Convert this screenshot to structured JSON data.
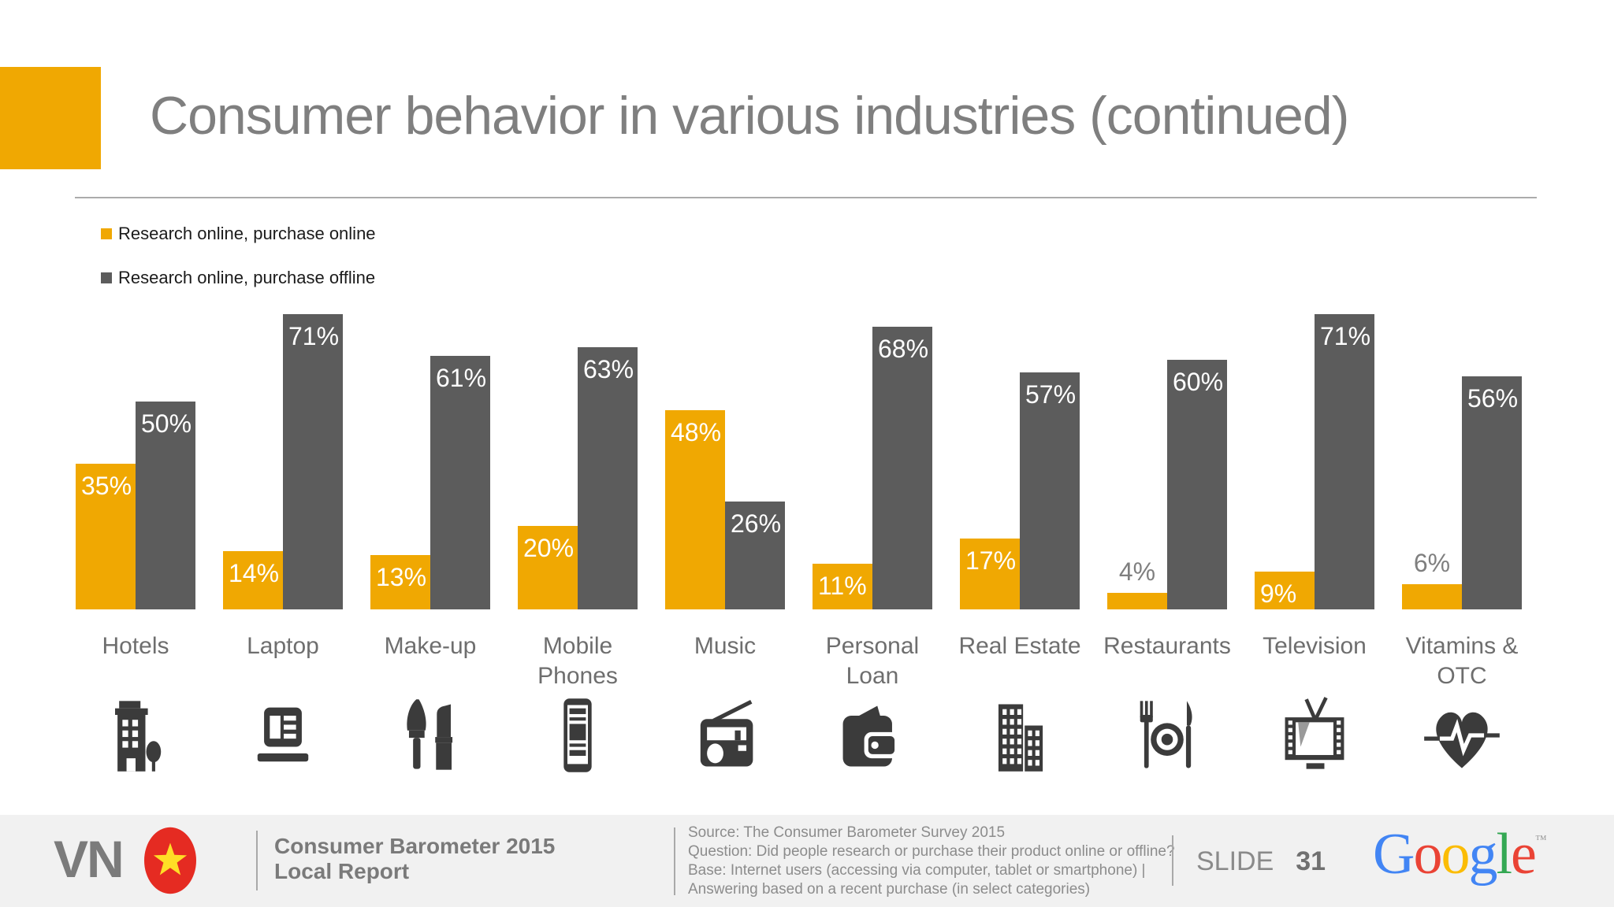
{
  "slide": {
    "title": "Consumer behavior in various industries (continued)",
    "slide_label": "SLIDE",
    "slide_number": "31",
    "brand": {
      "country": "VN",
      "report_line1": "Consumer Barometer 2015",
      "report_line2": "Local Report",
      "google_letters": [
        {
          "ch": "G",
          "color": "#4285F4"
        },
        {
          "ch": "o",
          "color": "#EA4335"
        },
        {
          "ch": "o",
          "color": "#FBBC05"
        },
        {
          "ch": "g",
          "color": "#4285F4"
        },
        {
          "ch": "l",
          "color": "#34A853"
        },
        {
          "ch": "e",
          "color": "#EA4335"
        }
      ],
      "google_tm": "™"
    },
    "source_lines": [
      "Source: The Consumer Barometer Survey 2015",
      "Question:  Did people research or purchase their product online or offline?",
      "Base: Internet users (accessing via computer, tablet or smartphone) |",
      "Answering based on a recent purchase (in select categories)"
    ]
  },
  "legend": [
    {
      "label": "Research online, purchase online",
      "color": "#F0A802"
    },
    {
      "label": "Research online, purchase offline",
      "color": "#5C5C5C"
    }
  ],
  "chart_data": {
    "type": "bar",
    "categories": [
      "Hotels",
      "Laptop",
      "Make-up",
      "Mobile Phones",
      "Music",
      "Personal Loan",
      "Real Estate",
      "Restaurants",
      "Television",
      "Vitamins & OTC"
    ],
    "series": [
      {
        "name": "Research online, purchase online",
        "color": "#F0A802",
        "values": [
          35,
          14,
          13,
          20,
          48,
          11,
          17,
          4,
          9,
          6
        ]
      },
      {
        "name": "Research online, purchase offline",
        "color": "#5C5C5C",
        "values": [
          50,
          71,
          61,
          63,
          26,
          68,
          57,
          60,
          71,
          56
        ]
      }
    ],
    "value_suffix": "%",
    "title": "Consumer behavior in various industries (continued)",
    "xlabel": "",
    "ylabel": "",
    "ylim": [
      0,
      80
    ],
    "grid": false,
    "axes_visible": false,
    "legend_position": "top-left",
    "icons": [
      "hotel-building-icon",
      "laptop-icon",
      "makeup-icon",
      "mobile-phone-icon",
      "radio-icon",
      "wallet-icon",
      "real-estate-buildings-icon",
      "restaurant-cutlery-icon",
      "television-icon",
      "heart-pulse-icon"
    ]
  },
  "colors": {
    "accent_yellow": "#F0A802",
    "bar_gray": "#5C5C5C",
    "footer_bg": "#F1F1F1",
    "flag_red": "#E52B22",
    "star_yellow": "#FFDE26",
    "icon_gray": "#3B3B3B",
    "title_gray": "#7F7F7F"
  }
}
